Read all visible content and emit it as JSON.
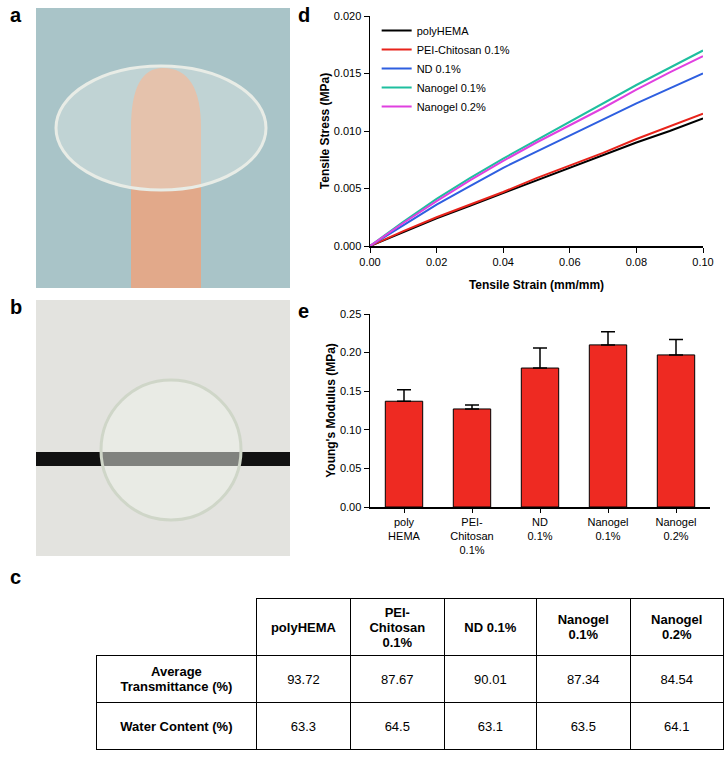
{
  "panel_labels": [
    "a",
    "b",
    "c",
    "d",
    "e"
  ],
  "table": {
    "header": [
      "polyHEMA",
      "PEI-Chitosan\n0.1%",
      "ND 0.1%",
      "Nanogel\n0.1%",
      "Nanogel\n0.2%"
    ],
    "rows": [
      [
        "Average\nTransmittance (%)",
        93.72,
        87.67,
        90.01,
        87.34,
        84.54
      ],
      [
        "Water Content (%)",
        63.3,
        64.5,
        63.1,
        63.5,
        64.1
      ]
    ]
  },
  "chart_data": [
    {
      "type": "line",
      "x_label": "Tensile Strain (mm/mm)",
      "y_label": "Tensile Stress (MPa)",
      "x": [
        0,
        0.01,
        0.02,
        0.03,
        0.04,
        0.05,
        0.06,
        0.07,
        0.08,
        0.09,
        0.1
      ],
      "series": [
        {
          "name": "polyHEMA",
          "color": "#000000",
          "values": [
            0,
            0.0012,
            0.0024,
            0.0035,
            0.0046,
            0.0057,
            0.0068,
            0.0079,
            0.009,
            0.01,
            0.0111
          ]
        },
        {
          "name": "PEI-Chitosan 0.1%",
          "color": "#e8231b",
          "values": [
            0,
            0.0013,
            0.0025,
            0.0036,
            0.0047,
            0.0059,
            0.007,
            0.0081,
            0.0093,
            0.0104,
            0.0115
          ]
        },
        {
          "name": "ND 0.1%",
          "color": "#2e5fe0",
          "values": [
            0,
            0.0018,
            0.0036,
            0.0052,
            0.0068,
            0.0082,
            0.0096,
            0.011,
            0.0124,
            0.0137,
            0.015
          ]
        },
        {
          "name": "Nanogel 0.1%",
          "color": "#1fbf9f",
          "values": [
            0,
            0.0021,
            0.0041,
            0.0059,
            0.0076,
            0.0092,
            0.0108,
            0.0124,
            0.014,
            0.0155,
            0.017
          ]
        },
        {
          "name": "Nanogel 0.2%",
          "color": "#e040e0",
          "values": [
            0,
            0.002,
            0.0039,
            0.0057,
            0.0074,
            0.009,
            0.0105,
            0.012,
            0.0136,
            0.0151,
            0.0165
          ]
        }
      ],
      "xlim": [
        0,
        0.1
      ],
      "xticks": [
        {
          "value": 0,
          "label": "0.00"
        },
        {
          "value": 0.02,
          "label": "0.02"
        },
        {
          "value": 0.04,
          "label": "0.04"
        },
        {
          "value": 0.06,
          "label": "0.06"
        },
        {
          "value": 0.08,
          "label": "0.08"
        },
        {
          "value": 0.1,
          "label": "0.10"
        }
      ],
      "ylim": [
        0,
        0.02
      ],
      "yticks": [
        {
          "value": 0,
          "label": "0.000"
        },
        {
          "value": 0.005,
          "label": "0.005"
        },
        {
          "value": 0.01,
          "label": "0.010"
        },
        {
          "value": 0.015,
          "label": "0.015"
        },
        {
          "value": 0.02,
          "label": "0.020"
        }
      ],
      "grid": false,
      "legend": "top left"
    },
    {
      "type": "bar",
      "y_label": "Young's Modulus (MPa)",
      "categories": [
        "poly\nHEMA",
        "PEI-\nChitosan\n0.1%",
        "ND\n0.1%",
        "Nanogel\n0.1%",
        "Nanogel\n0.2%"
      ],
      "values": [
        0.137,
        0.127,
        0.18,
        0.21,
        0.197
      ],
      "errors": [
        0.015,
        0.005,
        0.026,
        0.017,
        0.02
      ],
      "color": "#ee2a22",
      "ylim": [
        0,
        0.25
      ],
      "yticks": [
        {
          "value": 0,
          "label": "0.00"
        },
        {
          "value": 0.05,
          "label": "0.05"
        },
        {
          "value": 0.1,
          "label": "0.10"
        },
        {
          "value": 0.15,
          "label": "0.15"
        },
        {
          "value": 0.2,
          "label": "0.20"
        },
        {
          "value": 0.25,
          "label": "0.25"
        }
      ],
      "grid": false
    }
  ]
}
